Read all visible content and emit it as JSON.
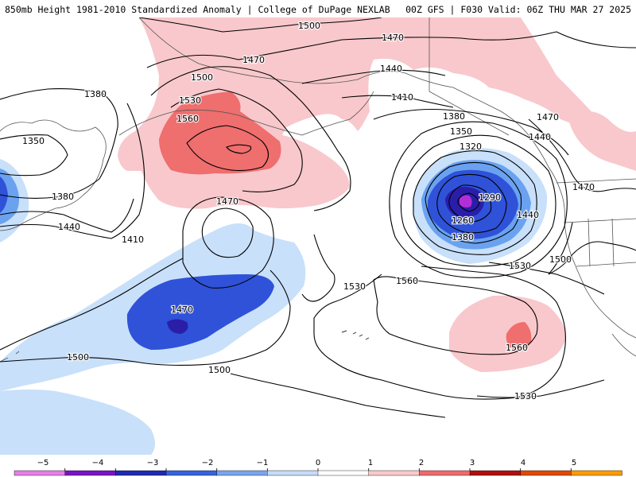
{
  "header": {
    "title": "850mb Height 1981-2010 Standardized Anomaly | College of DuPage NEXLAB",
    "run": "00Z GFS | F030 Valid: 06Z THU MAR 27 2025"
  },
  "map": {
    "contour_labels": [
      "1500",
      "1470",
      "1470",
      "1440",
      "1410",
      "1380",
      "1350",
      "1320",
      "1290",
      "1260",
      "1380",
      "1440",
      "1470",
      "1500",
      "1530",
      "1560",
      "1530",
      "1500",
      "1380",
      "1350",
      "1380",
      "1440",
      "1410",
      "1470",
      "1470",
      "1530",
      "1560",
      "1560",
      "1530",
      "1500",
      "1500",
      "1440",
      "1470"
    ],
    "anomaly_colors": {
      "pos1": "#f8c8cc",
      "pos2": "#ef6e6e",
      "neg1": "#c8e0fa",
      "neg2": "#6aa2f0",
      "neg3": "#2f52d8",
      "neg4": "#2a1ea8",
      "neg5": "#b22ed8"
    }
  },
  "colorbar": {
    "tick_labels": [
      "−5",
      "−4",
      "−3",
      "−2",
      "−1",
      "0",
      "1",
      "2",
      "3",
      "4",
      "5"
    ],
    "colors": [
      "#e580e8",
      "#7a14c4",
      "#1f2bb0",
      "#3663dd",
      "#7aa5ee",
      "#c6dcf7",
      "#ffffff",
      "#fbc9cb",
      "#ee6c6c",
      "#b01010",
      "#e04a00",
      "#fb9c00"
    ]
  }
}
